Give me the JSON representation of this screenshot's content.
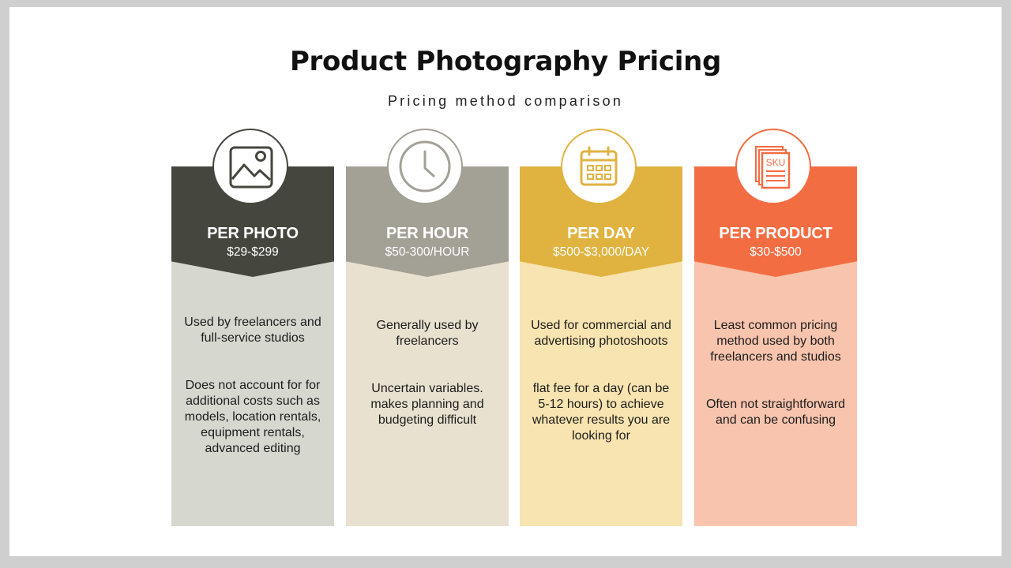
{
  "title": "Product Photography Pricing",
  "subtitle": "Pricing method comparison",
  "cards": [
    {
      "name": "PER PHOTO",
      "price": "$29-$299",
      "icon": "image-icon",
      "head_color": "#45463e",
      "body_color": "#d6d8d0",
      "desc1": "Used by freelancers and full-service studios",
      "desc2": "Does not account for for additional costs such as models, location rentals, equipment rentals, advanced editing"
    },
    {
      "name": "PER HOUR",
      "price": "$50-300/HOUR",
      "icon": "clock-icon",
      "head_color": "#a3a096",
      "body_color": "#e8e1cf",
      "desc1": "Generally used by freelancers",
      "desc2": "Uncertain variables. makes planning and budgeting difficult"
    },
    {
      "name": "PER DAY",
      "price": "$500-$3,000/DAY",
      "icon": "calendar-icon",
      "head_color": "#e0b340",
      "body_color": "#f8e4b0",
      "desc1": "Used for commercial and advertising photoshoots",
      "desc2": "flat fee for a day (can be 5-12 hours) to achieve whatever results you are looking for"
    },
    {
      "name": "PER PRODUCT",
      "price": "$30-$500",
      "icon": "sku-document-icon",
      "icon_text": "SKU",
      "head_color": "#f36d43",
      "body_color": "#f8c4ae",
      "desc1": "Least common pricing method used by both freelancers and studios",
      "desc2": "Often not straightforward and can be confusing"
    }
  ]
}
